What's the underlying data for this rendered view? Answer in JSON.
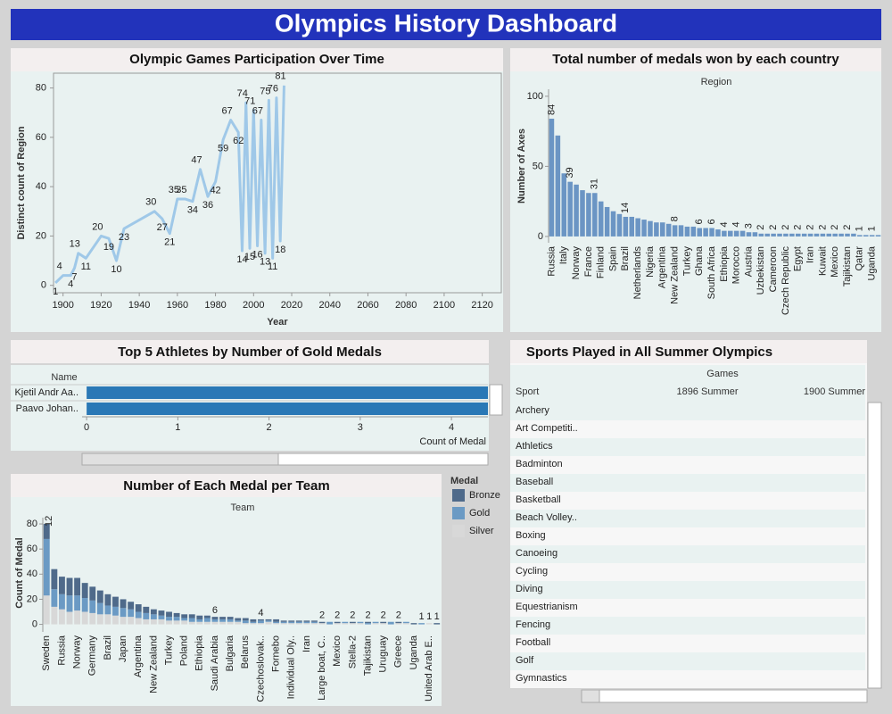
{
  "title": "Olympics History Dashboard",
  "chart_data": [
    {
      "type": "line",
      "title": "Olympic Games Participation Over Time",
      "x_label": "Year",
      "y_label": "Distinct count of Region",
      "x": [
        1896,
        1900,
        1904,
        1906,
        1908,
        1912,
        1920,
        1924,
        1928,
        1932,
        1948,
        1952,
        1956,
        1960,
        1964,
        1968,
        1972,
        1976,
        1980,
        1984,
        1988,
        1992,
        1994,
        1996,
        1998,
        2000,
        2002,
        2004,
        2006,
        2008,
        2010,
        2012,
        2014,
        2016
      ],
      "values": [
        1,
        4,
        4,
        7,
        13,
        11,
        20,
        19,
        10,
        23,
        30,
        27,
        21,
        35,
        35,
        34,
        47,
        36,
        42,
        59,
        67,
        62,
        14,
        74,
        15,
        71,
        16,
        67,
        13,
        75,
        11,
        76,
        18,
        81
      ],
      "color": "#9fc8e8",
      "xlim": [
        1895,
        2130
      ],
      "xticks": [
        1900,
        1920,
        1940,
        1960,
        1980,
        2000,
        2020,
        2040,
        2060,
        2080,
        2100,
        2120
      ],
      "ylim": [
        -3,
        86
      ],
      "yticks": [
        0,
        20,
        40,
        60,
        80
      ]
    },
    {
      "type": "bar",
      "title": "Total number of medals won by each country",
      "header": "Region",
      "y_label": "Number of Axes",
      "categories": [
        "Russia",
        null,
        "Italy",
        null,
        "Norway",
        null,
        "France",
        null,
        "Finland",
        null,
        "Spain",
        null,
        "Brazil",
        null,
        "Netherlands",
        null,
        "Nigeria",
        null,
        "Argentina",
        null,
        "New Zealand",
        null,
        "Turkey",
        null,
        "Ghana",
        null,
        "South Africa",
        null,
        "Ethiopia",
        null,
        "Morocco",
        null,
        "Austria",
        null,
        "Uzbekistan",
        null,
        "Cameroon",
        null,
        "Czech Republic",
        null,
        "Egypt",
        null,
        "Iran",
        null,
        "Kuwait",
        null,
        "Mexico",
        null,
        "Tajikistan",
        null,
        "Qatar",
        null,
        "Uganda",
        null
      ],
      "values": [
        84,
        72,
        45,
        39,
        37,
        33,
        31,
        31,
        25,
        21,
        18,
        16,
        14,
        14,
        13,
        12,
        11,
        10,
        10,
        9,
        8,
        8,
        7,
        7,
        6,
        6,
        6,
        5,
        4,
        4,
        4,
        4,
        3,
        3,
        2,
        2,
        2,
        2,
        2,
        2,
        2,
        2,
        2,
        2,
        2,
        2,
        2,
        2,
        2,
        2,
        1,
        1,
        1,
        1
      ],
      "value_labels": [
        "84",
        null,
        null,
        "39",
        null,
        null,
        null,
        "31",
        null,
        null,
        null,
        null,
        "14",
        null,
        null,
        null,
        null,
        null,
        null,
        null,
        "8",
        null,
        null,
        null,
        "6",
        null,
        "6",
        null,
        "4",
        null,
        "4",
        null,
        "3",
        null,
        "2",
        null,
        "2",
        null,
        "2",
        null,
        "2",
        null,
        "2",
        null,
        "2",
        null,
        "2",
        null,
        "2",
        null,
        "1",
        null,
        "1",
        null
      ],
      "color": "#6b95c4",
      "ylim": [
        -4.5,
        105
      ],
      "yticks": [
        0,
        50,
        100
      ]
    },
    {
      "type": "hbar",
      "title": "Top 5 Athletes by Number of Gold Medals",
      "header": "Name",
      "x_label": "Count of Medal",
      "categories": [
        "Kjetil Andr Aa..",
        "Paavo Johan.."
      ],
      "values": [
        4.4,
        4.4
      ],
      "color": "#2a78b6",
      "xlim": [
        -0.05,
        4.4
      ],
      "xticks": [
        0,
        1,
        2,
        3,
        4
      ]
    },
    {
      "type": "stacked_bar",
      "title": "Number of Each Medal per Team",
      "header": "Team",
      "y_label": "Count of Medal",
      "legend_title": "Medal",
      "categories": [
        "Sweden",
        null,
        "Russia",
        null,
        "Norway",
        null,
        "Germany",
        null,
        "Brazil",
        null,
        "Japan",
        null,
        "Argentina",
        null,
        "New Zealand",
        null,
        "Turkey",
        null,
        "Poland",
        null,
        "Ethiopia",
        null,
        "Saudi Arabia",
        null,
        "Bulgaria",
        null,
        "Belarus",
        null,
        "Czechoslovak..",
        null,
        "Fornebo",
        null,
        "Individual Oly..",
        null,
        "Iran",
        null,
        "Large boat, C..",
        null,
        "Mexico",
        null,
        "Stella-2",
        null,
        "Tajikistan",
        null,
        "Uruguay",
        null,
        "Greece",
        null,
        "Uganda",
        null,
        "United Arab E..",
        null
      ],
      "series": [
        {
          "name": "Bronze",
          "color": "#4f6a8a",
          "values": [
            12,
            16,
            14,
            14,
            14,
            12,
            11,
            10,
            9,
            8,
            7,
            6,
            6,
            5,
            4,
            4,
            4,
            3,
            3,
            3,
            3,
            2,
            2,
            2,
            2,
            2,
            2,
            2,
            1,
            1,
            2,
            1,
            1,
            1,
            1,
            1,
            1,
            0,
            1,
            0,
            1,
            0,
            1,
            0,
            1,
            0,
            1,
            0,
            1,
            0,
            0,
            1
          ],
          "value_labels": [
            "12",
            null,
            null,
            null,
            null,
            null,
            null,
            null,
            null,
            null,
            null,
            null,
            null,
            null,
            null,
            null,
            null,
            null,
            null,
            null,
            null,
            null,
            null,
            null,
            null,
            null,
            null,
            null,
            null,
            null,
            null,
            null,
            null,
            null,
            null,
            null,
            null,
            null,
            null,
            null,
            null,
            null,
            null,
            null,
            null,
            null,
            null,
            null,
            null,
            null,
            null,
            null
          ]
        },
        {
          "name": "Gold",
          "color": "#6b9ac4",
          "values": [
            45,
            14,
            12,
            13,
            12,
            11,
            10,
            9,
            7,
            7,
            7,
            6,
            5,
            5,
            4,
            3,
            3,
            3,
            2,
            3,
            2,
            3,
            2,
            2,
            2,
            1,
            2,
            1,
            2,
            1,
            1,
            1,
            1,
            1,
            1,
            1,
            0,
            2,
            0,
            1,
            0,
            1,
            1,
            1,
            0,
            2,
            0,
            1,
            0,
            1,
            0,
            0
          ]
        },
        {
          "name": "Silver",
          "color": "#d8d8d8",
          "values": [
            23,
            14,
            12,
            10,
            11,
            10,
            9,
            8,
            8,
            7,
            6,
            6,
            5,
            4,
            4,
            4,
            3,
            3,
            3,
            2,
            2,
            2,
            2,
            2,
            2,
            2,
            1,
            1,
            1,
            2,
            1,
            1,
            1,
            1,
            1,
            1,
            1,
            0,
            1,
            1,
            1,
            1,
            0,
            1,
            1,
            0,
            1,
            1,
            0,
            0,
            1,
            0
          ]
        }
      ],
      "total_labels": [
        null,
        null,
        null,
        null,
        null,
        null,
        null,
        null,
        null,
        null,
        null,
        null,
        null,
        null,
        null,
        null,
        null,
        null,
        null,
        null,
        null,
        null,
        "6",
        null,
        null,
        null,
        null,
        null,
        "4",
        null,
        null,
        null,
        null,
        null,
        null,
        null,
        "2",
        null,
        "2",
        null,
        "2",
        null,
        "2",
        null,
        "2",
        null,
        "2",
        null,
        null,
        "1",
        "1",
        "1"
      ],
      "ylim": [
        -6,
        85
      ],
      "yticks": [
        0,
        20,
        40,
        60,
        80
      ]
    }
  ],
  "sports_table": {
    "title": "Sports Played in All Summer Olympics",
    "column_header": "Games",
    "row_header": "Sport",
    "columns": [
      "1896 Summer",
      "1900 Summer"
    ],
    "rows": [
      "Archery",
      "Art Competiti..",
      "Athletics",
      "Badminton",
      "Baseball",
      "Basketball",
      "Beach Volley..",
      "Boxing",
      "Canoeing",
      "Cycling",
      "Diving",
      "Equestrianism",
      "Fencing",
      "Football",
      "Golf",
      "Gymnastics"
    ]
  }
}
